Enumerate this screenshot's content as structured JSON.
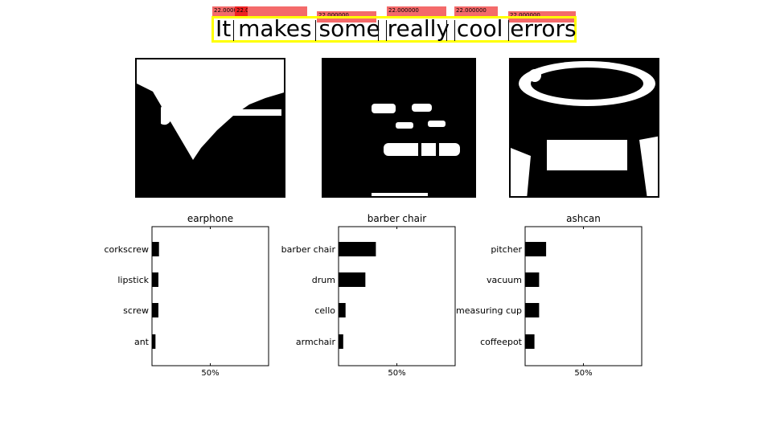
{
  "caption": {
    "text": "It makes some really cool errors",
    "tags": [
      "22.000000",
      "22.000000",
      "22.000000",
      "22.000000",
      "22.000000",
      "22.000000"
    ]
  },
  "photos": [
    {
      "subject": "earphone-photo"
    },
    {
      "subject": "barber-chair-photo"
    },
    {
      "subject": "ashcan-photo"
    }
  ],
  "chart_data": [
    {
      "type": "bar",
      "title": "earphone",
      "categories": [
        "corkscrew",
        "lipstick",
        "screw",
        "ant"
      ],
      "values": [
        6,
        5.5,
        5.5,
        3
      ],
      "xlim": [
        0,
        100
      ],
      "xticks": [
        50
      ],
      "xtick_labels": [
        "50%"
      ],
      "orientation": "horizontal"
    },
    {
      "type": "bar",
      "title": "barber chair",
      "categories": [
        "barber chair",
        "drum",
        "cello",
        "armchair"
      ],
      "values": [
        32,
        23,
        6,
        4
      ],
      "xlim": [
        0,
        100
      ],
      "xticks": [
        50
      ],
      "xtick_labels": [
        "50%"
      ],
      "orientation": "horizontal"
    },
    {
      "type": "bar",
      "title": "ashcan",
      "categories": [
        "pitcher",
        "vacuum",
        "measuring cup",
        "coffeepot"
      ],
      "values": [
        18,
        12,
        12,
        8
      ],
      "xlim": [
        0,
        100
      ],
      "xticks": [
        50
      ],
      "xtick_labels": [
        "50%"
      ],
      "orientation": "horizontal"
    }
  ]
}
